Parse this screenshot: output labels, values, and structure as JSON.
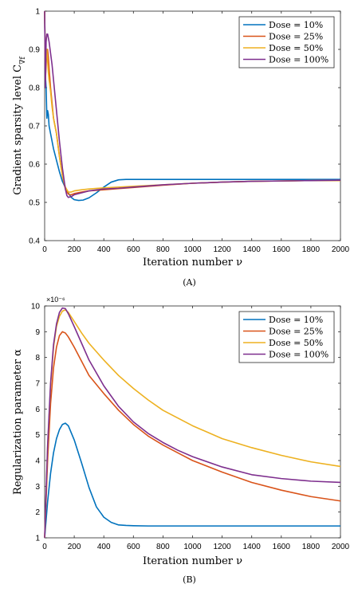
{
  "chart_data": [
    {
      "type": "line",
      "caption": "(A)",
      "xlabel": "Iteration number ν",
      "ylabel": "Gradient sparsity level C",
      "ylabel_sub": "∇f",
      "xlim": [
        0,
        2000
      ],
      "ylim": [
        0.4,
        1
      ],
      "xticks": [
        0,
        200,
        400,
        600,
        800,
        1000,
        1200,
        1400,
        1600,
        1800,
        2000
      ],
      "yticks": [
        0.4,
        0.5,
        0.6,
        0.7,
        0.8,
        0.9,
        1
      ],
      "ytick_labels": [
        "0.4",
        "0.5",
        "0.6",
        "0.7",
        "0.8",
        "0.9",
        "1"
      ],
      "legend_position": "top-right",
      "series": [
        {
          "name": "Dose = 10%",
          "color": "#0072BD",
          "x": [
            0,
            5,
            10,
            15,
            20,
            25,
            30,
            40,
            50,
            60,
            80,
            100,
            120,
            150,
            180,
            200,
            230,
            260,
            300,
            350,
            400,
            450,
            500,
            550,
            600,
            700,
            800,
            1000,
            1200,
            1400,
            1600,
            1800,
            2000
          ],
          "y": [
            1.0,
            0.83,
            0.8,
            0.72,
            0.74,
            0.73,
            0.7,
            0.68,
            0.66,
            0.64,
            0.61,
            0.58,
            0.555,
            0.53,
            0.513,
            0.507,
            0.505,
            0.506,
            0.512,
            0.525,
            0.54,
            0.553,
            0.559,
            0.56,
            0.56,
            0.56,
            0.56,
            0.56,
            0.56,
            0.56,
            0.56,
            0.56,
            0.56
          ]
        },
        {
          "name": "Dose = 25%",
          "color": "#D95319",
          "x": [
            0,
            5,
            10,
            15,
            20,
            25,
            30,
            40,
            50,
            60,
            80,
            100,
            120,
            140,
            160,
            170,
            180,
            200,
            250,
            300,
            400,
            500,
            600,
            800,
            1000,
            1200,
            1400,
            1600,
            1800,
            2000
          ],
          "y": [
            1.0,
            0.82,
            0.86,
            0.9,
            0.9,
            0.88,
            0.85,
            0.8,
            0.76,
            0.72,
            0.68,
            0.62,
            0.57,
            0.535,
            0.522,
            0.52,
            0.52,
            0.523,
            0.527,
            0.53,
            0.533,
            0.536,
            0.539,
            0.545,
            0.55,
            0.553,
            0.555,
            0.556,
            0.557,
            0.558
          ]
        },
        {
          "name": "Dose = 50%",
          "color": "#EDB120",
          "x": [
            0,
            5,
            10,
            15,
            20,
            25,
            30,
            40,
            50,
            60,
            80,
            100,
            120,
            140,
            160,
            180,
            200,
            250,
            300,
            400,
            500,
            600,
            800,
            1000,
            1200,
            1400,
            1600,
            1800,
            2000
          ],
          "y": [
            1.0,
            0.84,
            0.88,
            0.9,
            0.87,
            0.84,
            0.82,
            0.79,
            0.75,
            0.72,
            0.68,
            0.62,
            0.57,
            0.54,
            0.527,
            0.527,
            0.53,
            0.533,
            0.535,
            0.538,
            0.54,
            0.542,
            0.546,
            0.55,
            0.553,
            0.555,
            0.556,
            0.557,
            0.557
          ]
        },
        {
          "name": "Dose = 100%",
          "color": "#7E2F8E",
          "x": [
            0,
            5,
            10,
            15,
            20,
            25,
            30,
            40,
            50,
            60,
            80,
            100,
            120,
            140,
            150,
            160,
            180,
            200,
            250,
            300,
            400,
            500,
            600,
            800,
            1000,
            1200,
            1400,
            1600,
            1800,
            2000
          ],
          "y": [
            1.0,
            0.8,
            0.92,
            0.94,
            0.94,
            0.93,
            0.92,
            0.89,
            0.86,
            0.82,
            0.74,
            0.66,
            0.59,
            0.535,
            0.518,
            0.513,
            0.515,
            0.52,
            0.525,
            0.53,
            0.535,
            0.537,
            0.54,
            0.546,
            0.55,
            0.553,
            0.555,
            0.556,
            0.557,
            0.558
          ]
        }
      ]
    },
    {
      "type": "line",
      "caption": "(B)",
      "xlabel": "Iteration number ν",
      "ylabel": "Regularization parameter α",
      "ylabel_sub": "",
      "multiplier": "×10⁻⁶",
      "xlim": [
        0,
        2000
      ],
      "ylim": [
        1,
        10
      ],
      "xticks": [
        0,
        200,
        400,
        600,
        800,
        1000,
        1200,
        1400,
        1600,
        1800,
        2000
      ],
      "yticks": [
        1,
        2,
        3,
        4,
        5,
        6,
        7,
        8,
        9,
        10
      ],
      "ytick_labels": [
        "1",
        "2",
        "3",
        "4",
        "5",
        "6",
        "7",
        "8",
        "9",
        "10"
      ],
      "legend_position": "top-right",
      "series": [
        {
          "name": "Dose = 10%",
          "color": "#0072BD",
          "x": [
            0,
            20,
            40,
            60,
            80,
            100,
            120,
            140,
            160,
            200,
            250,
            300,
            350,
            400,
            450,
            500,
            550,
            600,
            700,
            800,
            1000,
            1200,
            1400,
            1600,
            1800,
            2000
          ],
          "y": [
            1.0,
            2.4,
            3.5,
            4.3,
            4.85,
            5.2,
            5.4,
            5.45,
            5.35,
            4.8,
            3.9,
            2.95,
            2.2,
            1.8,
            1.6,
            1.5,
            1.48,
            1.47,
            1.46,
            1.46,
            1.46,
            1.46,
            1.46,
            1.46,
            1.46,
            1.46
          ]
        },
        {
          "name": "Dose = 25%",
          "color": "#D95319",
          "x": [
            0,
            20,
            40,
            60,
            80,
            100,
            120,
            140,
            160,
            200,
            250,
            300,
            400,
            500,
            600,
            700,
            800,
            900,
            1000,
            1200,
            1400,
            1600,
            1800,
            2000
          ],
          "y": [
            1.0,
            4.0,
            6.2,
            7.6,
            8.4,
            8.85,
            9.0,
            8.95,
            8.8,
            8.4,
            7.85,
            7.3,
            6.6,
            5.95,
            5.4,
            4.95,
            4.6,
            4.3,
            4.0,
            3.55,
            3.15,
            2.85,
            2.6,
            2.43
          ]
        },
        {
          "name": "Dose = 50%",
          "color": "#EDB120",
          "x": [
            0,
            20,
            40,
            60,
            80,
            100,
            120,
            140,
            160,
            200,
            250,
            300,
            400,
            500,
            600,
            700,
            800,
            1000,
            1200,
            1400,
            1600,
            1800,
            2000
          ],
          "y": [
            1.0,
            4.5,
            6.9,
            8.4,
            9.2,
            9.6,
            9.8,
            9.85,
            9.75,
            9.4,
            8.95,
            8.55,
            7.9,
            7.3,
            6.8,
            6.35,
            5.95,
            5.35,
            4.85,
            4.5,
            4.2,
            3.95,
            3.77
          ]
        },
        {
          "name": "Dose = 100%",
          "color": "#7E2F8E",
          "x": [
            0,
            20,
            40,
            60,
            80,
            100,
            120,
            140,
            160,
            200,
            250,
            300,
            400,
            500,
            600,
            700,
            800,
            900,
            1000,
            1200,
            1400,
            1600,
            1800,
            2000
          ],
          "y": [
            1.0,
            4.6,
            7.0,
            8.5,
            9.3,
            9.75,
            9.92,
            9.9,
            9.7,
            9.2,
            8.55,
            7.9,
            6.9,
            6.1,
            5.5,
            5.05,
            4.7,
            4.4,
            4.15,
            3.75,
            3.45,
            3.3,
            3.2,
            3.15
          ]
        }
      ]
    }
  ]
}
